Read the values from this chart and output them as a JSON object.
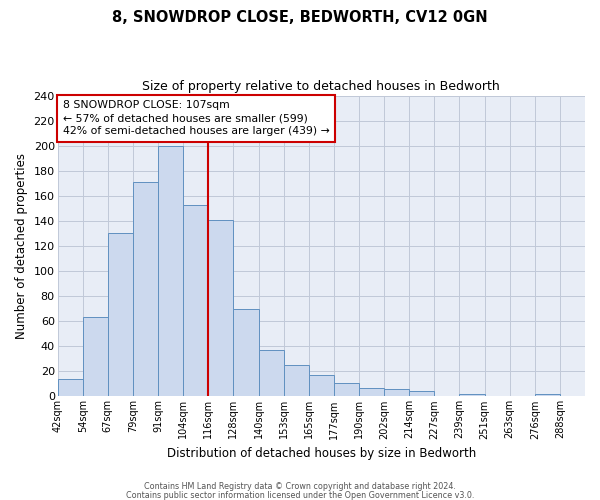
{
  "title": "8, SNOWDROP CLOSE, BEDWORTH, CV12 0GN",
  "subtitle": "Size of property relative to detached houses in Bedworth",
  "xlabel": "Distribution of detached houses by size in Bedworth",
  "ylabel": "Number of detached properties",
  "bar_labels": [
    "42sqm",
    "54sqm",
    "67sqm",
    "79sqm",
    "91sqm",
    "104sqm",
    "116sqm",
    "128sqm",
    "140sqm",
    "153sqm",
    "165sqm",
    "177sqm",
    "190sqm",
    "202sqm",
    "214sqm",
    "227sqm",
    "239sqm",
    "251sqm",
    "263sqm",
    "276sqm",
    "288sqm"
  ],
  "bar_heights": [
    14,
    63,
    130,
    171,
    200,
    153,
    141,
    70,
    37,
    25,
    17,
    11,
    7,
    6,
    4,
    0,
    2,
    0,
    0,
    2,
    0
  ],
  "bar_color": "#ccd9ee",
  "bar_edge_color": "#6090c0",
  "ylim": [
    0,
    240
  ],
  "yticks": [
    0,
    20,
    40,
    60,
    80,
    100,
    120,
    140,
    160,
    180,
    200,
    220,
    240
  ],
  "vline_x_index": 5,
  "vline_color": "#cc0000",
  "annotation_title": "8 SNOWDROP CLOSE: 107sqm",
  "annotation_line1": "← 57% of detached houses are smaller (599)",
  "annotation_line2": "42% of semi-detached houses are larger (439) →",
  "annotation_box_color": "#ffffff",
  "annotation_box_edge": "#cc0000",
  "footer1": "Contains HM Land Registry data © Crown copyright and database right 2024.",
  "footer2": "Contains public sector information licensed under the Open Government Licence v3.0.",
  "background_color": "#ffffff",
  "plot_bg_color": "#e8edf6",
  "grid_color": "#c0c8d8"
}
